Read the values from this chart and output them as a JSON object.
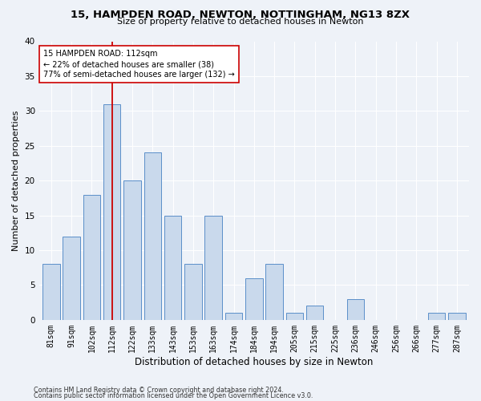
{
  "title1": "15, HAMPDEN ROAD, NEWTON, NOTTINGHAM, NG13 8ZX",
  "title2": "Size of property relative to detached houses in Newton",
  "xlabel": "Distribution of detached houses by size in Newton",
  "ylabel": "Number of detached properties",
  "categories": [
    "81sqm",
    "91sqm",
    "102sqm",
    "112sqm",
    "122sqm",
    "133sqm",
    "143sqm",
    "153sqm",
    "163sqm",
    "174sqm",
    "184sqm",
    "194sqm",
    "205sqm",
    "215sqm",
    "225sqm",
    "236sqm",
    "246sqm",
    "256sqm",
    "266sqm",
    "277sqm",
    "287sqm"
  ],
  "values": [
    8,
    12,
    18,
    31,
    20,
    24,
    15,
    8,
    15,
    1,
    6,
    8,
    1,
    2,
    0,
    3,
    0,
    0,
    0,
    1,
    1
  ],
  "bar_color": "#c9d9ec",
  "bar_edge_color": "#5b8fc9",
  "marker_index": 3,
  "marker_color": "#cc0000",
  "annotation_line1": "15 HAMPDEN ROAD: 112sqm",
  "annotation_line2": "← 22% of detached houses are smaller (38)",
  "annotation_line3": "77% of semi-detached houses are larger (132) →",
  "annotation_box_color": "#ffffff",
  "annotation_box_edge": "#cc0000",
  "ylim": [
    0,
    40
  ],
  "yticks": [
    0,
    5,
    10,
    15,
    20,
    25,
    30,
    35,
    40
  ],
  "footer1": "Contains HM Land Registry data © Crown copyright and database right 2024.",
  "footer2": "Contains public sector information licensed under the Open Government Licence v3.0.",
  "bg_color": "#eef2f8",
  "plot_bg_color": "#eef2f8",
  "title1_fontsize": 9.5,
  "title2_fontsize": 8.0,
  "ylabel_fontsize": 8.0,
  "xlabel_fontsize": 8.5,
  "tick_fontsize": 7.0,
  "annotation_fontsize": 7.0,
  "footer_fontsize": 5.8
}
